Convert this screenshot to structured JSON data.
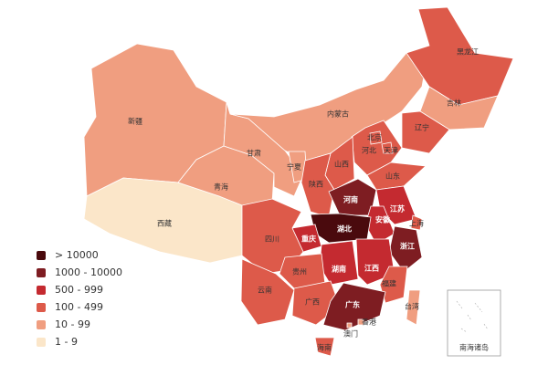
{
  "regions": [
    {
      "name": "新疆",
      "color": "#f09e80"
    },
    {
      "name": "西藏",
      "color": "#fbe6c9"
    },
    {
      "name": "青海",
      "color": "#f09e80"
    },
    {
      "name": "甘肃",
      "color": "#f09e80"
    },
    {
      "name": "内蒙古",
      "color": "#f09e80"
    },
    {
      "name": "黑龙江",
      "color": "#dd5a4a"
    },
    {
      "name": "吉林",
      "color": "#f09e80"
    },
    {
      "name": "辽宁",
      "color": "#dd5a4a"
    },
    {
      "name": "河北",
      "color": "#dd5a4a"
    },
    {
      "name": "北京",
      "color": "#dd5a4a"
    },
    {
      "name": "天津",
      "color": "#dd5a4a"
    },
    {
      "name": "山西",
      "color": "#dd5a4a"
    },
    {
      "name": "宁夏",
      "color": "#f09e80"
    },
    {
      "name": "陕西",
      "color": "#dd5a4a"
    },
    {
      "name": "山东",
      "color": "#dd5a4a"
    },
    {
      "name": "河南",
      "color": "#7e1d22"
    },
    {
      "name": "江苏",
      "color": "#c42a30"
    },
    {
      "name": "安徽",
      "color": "#c42a30"
    },
    {
      "name": "上海",
      "color": "#dd5a4a"
    },
    {
      "name": "湖北",
      "color": "#4a0a0d"
    },
    {
      "name": "浙江",
      "color": "#7e1d22"
    },
    {
      "name": "重庆",
      "color": "#c42a30"
    },
    {
      "name": "四川",
      "color": "#dd5a4a"
    },
    {
      "name": "湖南",
      "color": "#c42a30"
    },
    {
      "name": "江西",
      "color": "#c42a30"
    },
    {
      "name": "福建",
      "color": "#dd5a4a"
    },
    {
      "name": "贵州",
      "color": "#dd5a4a"
    },
    {
      "name": "云南",
      "color": "#dd5a4a"
    },
    {
      "name": "广西",
      "color": "#dd5a4a"
    },
    {
      "name": "广东",
      "color": "#7e1d22"
    },
    {
      "name": "台湾",
      "color": "#f09e80"
    },
    {
      "name": "海南",
      "color": "#dd5a4a"
    },
    {
      "name": "香港",
      "color": "#f09e80"
    },
    {
      "name": "澳门",
      "color": "#f09e80"
    }
  ],
  "inset_label": "南海诸岛",
  "legend": [
    {
      "label": "> 10000",
      "color": "#4a0a0d"
    },
    {
      "label": "1000 - 10000",
      "color": "#7e1d22"
    },
    {
      "label": "500 - 999",
      "color": "#c42a30"
    },
    {
      "label": "100 - 499",
      "color": "#dd5a4a"
    },
    {
      "label": "10 - 99",
      "color": "#f09e80"
    },
    {
      "label": "1 - 9",
      "color": "#fbe6c9"
    }
  ]
}
